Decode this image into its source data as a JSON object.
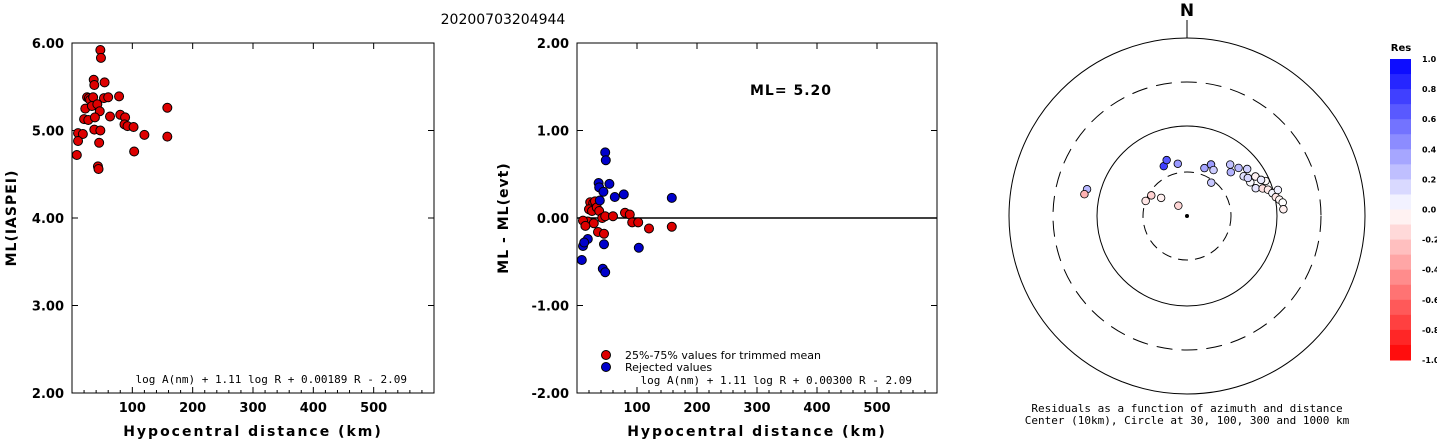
{
  "title": "20200703204944",
  "colors": {
    "accepted": "#dd0000",
    "rejected": "#0000cc",
    "grid": "#000000"
  },
  "chart_data": [
    {
      "type": "scatter",
      "id": "ml-vs-distance",
      "xlabel": "Hypocentral distance (km)",
      "ylabel": "ML(IASPEI)",
      "xlim": [
        0,
        600
      ],
      "ylim": [
        2.0,
        6.0
      ],
      "xticks": [
        100,
        200,
        300,
        400,
        500
      ],
      "yticks": [
        2.0,
        3.0,
        4.0,
        5.0,
        6.0
      ],
      "ytick_labels": [
        "2.00",
        "3.00",
        "4.00",
        "5.00",
        "6.00"
      ],
      "formula": "log A(nm) + 1.11 log R + 0.00189 R - 2.09",
      "points": [
        [
          47,
          5.92
        ],
        [
          48,
          5.83
        ],
        [
          36,
          5.58
        ],
        [
          37,
          5.52
        ],
        [
          54,
          5.55
        ],
        [
          25,
          5.38
        ],
        [
          28,
          5.37
        ],
        [
          30,
          5.35
        ],
        [
          35,
          5.38
        ],
        [
          53,
          5.37
        ],
        [
          60,
          5.38
        ],
        [
          78,
          5.39
        ],
        [
          22,
          5.25
        ],
        [
          33,
          5.28
        ],
        [
          42,
          5.3
        ],
        [
          46,
          5.22
        ],
        [
          63,
          5.16
        ],
        [
          80,
          5.18
        ],
        [
          88,
          5.15
        ],
        [
          158,
          5.26
        ],
        [
          20,
          5.13
        ],
        [
          27,
          5.12
        ],
        [
          38,
          5.15
        ],
        [
          87,
          5.07
        ],
        [
          92,
          5.05
        ],
        [
          102,
          5.04
        ],
        [
          120,
          4.95
        ],
        [
          37,
          5.01
        ],
        [
          47,
          5.0
        ],
        [
          10,
          4.97
        ],
        [
          18,
          4.96
        ],
        [
          158,
          4.93
        ],
        [
          10,
          4.88
        ],
        [
          45,
          4.86
        ],
        [
          103,
          4.76
        ],
        [
          8,
          4.72
        ],
        [
          43,
          4.59
        ],
        [
          44,
          4.56
        ]
      ]
    },
    {
      "type": "scatter",
      "id": "residual-vs-distance",
      "xlabel": "Hypocentral distance (km)",
      "ylabel": "ML - ML(evt)",
      "xlim": [
        0,
        600
      ],
      "ylim": [
        -2.0,
        2.0
      ],
      "xticks": [
        100,
        200,
        300,
        400,
        500
      ],
      "yticks": [
        -2.0,
        -1.0,
        0.0,
        1.0,
        2.0
      ],
      "ytick_labels": [
        "-2.00",
        "-1.00",
        "0.00",
        "1.00",
        "2.00"
      ],
      "annotation": "ML= 5.20",
      "formula": "log A(nm) + 1.11 log R + 0.00300 R - 2.09",
      "legend": {
        "placement": "bottom-left",
        "entries": [
          {
            "label": "25%-75% values for trimmed mean",
            "series": "accepted"
          },
          {
            "label": "Rejected values",
            "series": "rejected"
          }
        ]
      },
      "accepted": [
        [
          22,
          0.18
        ],
        [
          27,
          0.17
        ],
        [
          30,
          0.19
        ],
        [
          20,
          0.1
        ],
        [
          25,
          0.08
        ],
        [
          33,
          0.12
        ],
        [
          37,
          0.08
        ],
        [
          18,
          -0.04
        ],
        [
          42,
          0.0
        ],
        [
          47,
          0.02
        ],
        [
          60,
          0.02
        ],
        [
          80,
          0.06
        ],
        [
          88,
          0.04
        ],
        [
          92,
          -0.05
        ],
        [
          102,
          -0.05
        ],
        [
          120,
          -0.12
        ],
        [
          158,
          -0.1
        ],
        [
          28,
          -0.06
        ],
        [
          35,
          -0.16
        ],
        [
          45,
          -0.18
        ],
        [
          10,
          -0.03
        ],
        [
          14,
          -0.09
        ]
      ],
      "rejected": [
        [
          47,
          0.75
        ],
        [
          48,
          0.66
        ],
        [
          36,
          0.4
        ],
        [
          37,
          0.35
        ],
        [
          54,
          0.39
        ],
        [
          38,
          0.2
        ],
        [
          63,
          0.24
        ],
        [
          78,
          0.27
        ],
        [
          158,
          0.23
        ],
        [
          44,
          0.3
        ],
        [
          8,
          -0.48
        ],
        [
          10,
          -0.32
        ],
        [
          18,
          -0.24
        ],
        [
          12,
          -0.28
        ],
        [
          45,
          -0.3
        ],
        [
          103,
          -0.34
        ],
        [
          43,
          -0.58
        ],
        [
          47,
          -0.62
        ]
      ]
    },
    {
      "type": "polar-scatter",
      "id": "residual-map",
      "north_label": "N",
      "caption_line1": "Residuals as a function of azimuth and distance",
      "caption_line2": "Center (10km), Circle at 30, 100, 300 and 1000 km",
      "circles_km": [
        30,
        100,
        300,
        1000
      ],
      "colorbar": {
        "title": "Res",
        "range": [
          -1.0,
          1.0
        ],
        "ticks": [
          "1.0",
          "0.8",
          "0.6",
          "0.4",
          "0.2",
          "0.0",
          "-0.2",
          "-0.4",
          "-0.6",
          "-0.8",
          "-1.0"
        ]
      },
      "points": [
        {
          "az": 335,
          "dist": 40,
          "res": 0.75
        },
        {
          "az": 340,
          "dist": 45,
          "res": 0.66
        },
        {
          "az": 350,
          "dist": 38,
          "res": 0.4
        },
        {
          "az": 20,
          "dist": 36,
          "res": 0.35
        },
        {
          "az": 25,
          "dist": 42,
          "res": 0.39
        },
        {
          "az": 30,
          "dist": 38,
          "res": 0.2
        },
        {
          "az": 45,
          "dist": 48,
          "res": 0.3
        },
        {
          "az": 40,
          "dist": 55,
          "res": 0.24
        },
        {
          "az": 47,
          "dist": 60,
          "res": 0.27
        },
        {
          "az": 55,
          "dist": 58,
          "res": 0.12
        },
        {
          "az": 62,
          "dist": 62,
          "res": 0.02
        },
        {
          "az": 60,
          "dist": 75,
          "res": -0.05
        },
        {
          "az": 68,
          "dist": 66,
          "res": 0.1
        },
        {
          "az": 70,
          "dist": 78,
          "res": -0.12
        },
        {
          "az": 72,
          "dist": 88,
          "res": -0.08
        },
        {
          "az": 66,
          "dist": 90,
          "res": -0.02
        },
        {
          "az": 75,
          "dist": 96,
          "res": 0.04
        },
        {
          "az": 78,
          "dist": 102,
          "res": -0.1
        },
        {
          "az": 80,
          "dist": 110,
          "res": -0.04
        },
        {
          "az": 74,
          "dist": 112,
          "res": 0.06
        },
        {
          "az": 82,
          "dist": 118,
          "res": 0.0
        },
        {
          "az": 86,
          "dist": 118,
          "res": -0.06
        },
        {
          "az": 64,
          "dist": 82,
          "res": 0.08
        },
        {
          "az": 52,
          "dist": 70,
          "res": 0.18
        },
        {
          "az": 58,
          "dist": 62,
          "res": 0.16
        },
        {
          "az": 36,
          "dist": 28,
          "res": 0.22
        },
        {
          "az": 300,
          "dist": 28,
          "res": -0.18
        },
        {
          "az": 290,
          "dist": 30,
          "res": -0.1
        },
        {
          "az": 305,
          "dist": 22,
          "res": -0.06
        },
        {
          "az": 320,
          "dist": 14,
          "res": -0.16
        },
        {
          "az": 285,
          "dist": 140,
          "res": 0.28
        },
        {
          "az": 282,
          "dist": 145,
          "res": -0.3
        }
      ]
    }
  ]
}
